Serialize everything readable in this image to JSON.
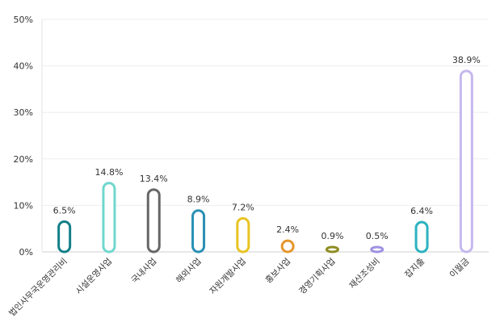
{
  "chart_data": {
    "type": "bar",
    "categories": [
      "법인사무국운영관리비",
      "시설운영사업",
      "국내사업",
      "해외사업",
      "자원개발사업",
      "홍보사업",
      "경영기획사업",
      "재산조성비",
      "잡지출",
      "이월금"
    ],
    "values": [
      6.5,
      14.8,
      13.4,
      8.9,
      7.2,
      2.4,
      0.9,
      0.5,
      6.4,
      38.9
    ],
    "data_labels": [
      "6.5%",
      "14.8%",
      "13.4%",
      "8.9%",
      "7.2%",
      "2.4%",
      "0.9%",
      "0.5%",
      "6.4%",
      "38.9%"
    ],
    "ylim": [
      0,
      50
    ],
    "yticks": [
      "0%",
      "10%",
      "20%",
      "30%",
      "40%",
      "50%"
    ],
    "grid": true,
    "colors": [
      "#127f88",
      "#6fd7cd",
      "#666666",
      "#2a8fb3",
      "#e9c321",
      "#e6962a",
      "#8e8c1f",
      "#9f91e3",
      "#2cb2bf",
      "#c5b8ee"
    ]
  }
}
